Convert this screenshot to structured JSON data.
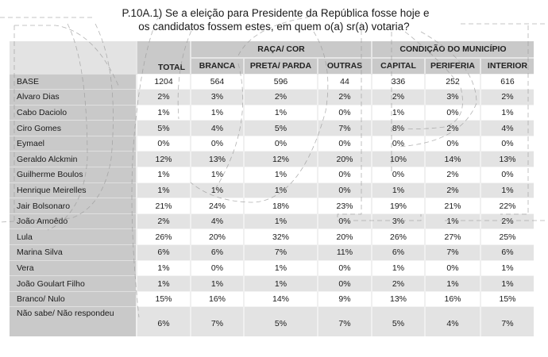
{
  "title": {
    "line1": "P.10A.1) Se a eleição para Presidente da República fosse hoje e",
    "line2": "os candidatos fossem estes, em quem o(a) sr(a) votaria?"
  },
  "table": {
    "groups": [
      {
        "label": "RAÇA/ COR"
      },
      {
        "label": "CONDIÇÃO DO MUNICÍPIO"
      }
    ],
    "columns": [
      "TOTAL",
      "BRANCA",
      "PRETA/ PARDA",
      "OUTRAS",
      "CAPITAL",
      "PERIFERIA",
      "INTERIOR"
    ],
    "rows": [
      {
        "label": "BASE",
        "values": [
          "1204",
          "564",
          "596",
          "44",
          "336",
          "252",
          "616"
        ]
      },
      {
        "label": "Alvaro Dias",
        "values": [
          "2%",
          "3%",
          "2%",
          "2%",
          "2%",
          "3%",
          "2%"
        ]
      },
      {
        "label": "Cabo Daciolo",
        "values": [
          "1%",
          "1%",
          "1%",
          "0%",
          "1%",
          "0%",
          "1%"
        ]
      },
      {
        "label": "Ciro Gomes",
        "values": [
          "5%",
          "4%",
          "5%",
          "7%",
          "8%",
          "2%",
          "4%"
        ]
      },
      {
        "label": "Eymael",
        "values": [
          "0%",
          "0%",
          "0%",
          "0%",
          "0%",
          "0%",
          "0%"
        ]
      },
      {
        "label": "Geraldo Alckmin",
        "values": [
          "12%",
          "13%",
          "12%",
          "20%",
          "10%",
          "14%",
          "13%"
        ]
      },
      {
        "label": "Guilherme Boulos",
        "values": [
          "1%",
          "1%",
          "1%",
          "0%",
          "0%",
          "2%",
          "0%"
        ]
      },
      {
        "label": "Henrique Meirelles",
        "values": [
          "1%",
          "1%",
          "1%",
          "0%",
          "1%",
          "2%",
          "1%"
        ]
      },
      {
        "label": "Jair Bolsonaro",
        "values": [
          "21%",
          "24%",
          "18%",
          "23%",
          "19%",
          "21%",
          "22%"
        ]
      },
      {
        "label": "João Amoêdo",
        "values": [
          "2%",
          "4%",
          "1%",
          "0%",
          "3%",
          "1%",
          "2%"
        ]
      },
      {
        "label": "Lula",
        "values": [
          "26%",
          "20%",
          "32%",
          "20%",
          "26%",
          "27%",
          "25%"
        ]
      },
      {
        "label": "Marina Silva",
        "values": [
          "6%",
          "6%",
          "7%",
          "11%",
          "6%",
          "7%",
          "6%"
        ]
      },
      {
        "label": "Vera",
        "values": [
          "1%",
          "0%",
          "1%",
          "0%",
          "1%",
          "0%",
          "1%"
        ]
      },
      {
        "label": "João Goulart Filho",
        "values": [
          "1%",
          "1%",
          "1%",
          "0%",
          "2%",
          "1%",
          "1%"
        ]
      },
      {
        "label": "Branco/ Nulo",
        "values": [
          "15%",
          "16%",
          "14%",
          "9%",
          "13%",
          "16%",
          "15%"
        ]
      },
      {
        "label": "Não sabe/ Não respondeu",
        "values": [
          "6%",
          "7%",
          "5%",
          "7%",
          "5%",
          "4%",
          "7%"
        ]
      }
    ]
  }
}
